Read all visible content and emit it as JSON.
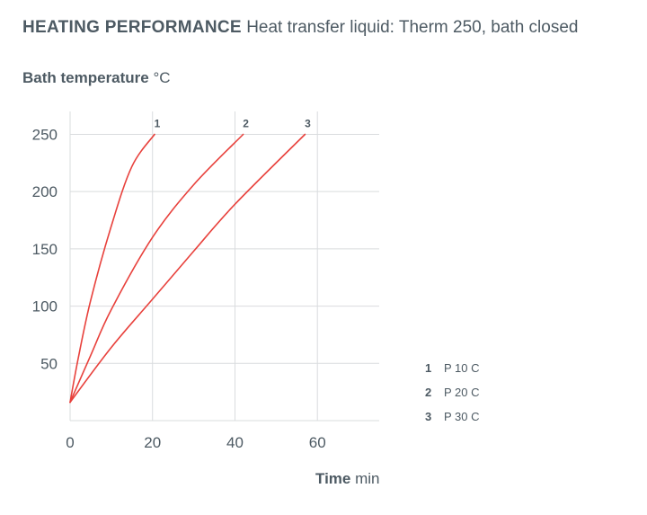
{
  "chart_data": {
    "type": "line",
    "title_bold": "HEATING PERFORMANCE",
    "subtitle": "Heat transfer liquid: Therm 250, bath closed",
    "ylabel_bold": "Bath temperature",
    "ylabel_unit": "°C",
    "xlabel_bold": "Time",
    "xlabel_unit": "min",
    "xlim": [
      0,
      75
    ],
    "ylim": [
      0,
      270
    ],
    "x_ticks": [
      0,
      20,
      40,
      60
    ],
    "y_ticks": [
      50,
      100,
      150,
      200,
      250
    ],
    "grid": true,
    "line_color": "#e8413c",
    "series": [
      {
        "name": "1",
        "legend_label": "P 10 C",
        "points": [
          [
            0,
            16
          ],
          [
            2,
            55
          ],
          [
            5,
            105
          ],
          [
            10,
            170
          ],
          [
            15,
            222
          ],
          [
            20.5,
            250
          ]
        ]
      },
      {
        "name": "2",
        "legend_label": "P 20 C",
        "points": [
          [
            0,
            16
          ],
          [
            5,
            57
          ],
          [
            10,
            97
          ],
          [
            20,
            160
          ],
          [
            30,
            206
          ],
          [
            42,
            250
          ]
        ]
      },
      {
        "name": "3",
        "legend_label": "P 30 C",
        "points": [
          [
            0,
            16
          ],
          [
            10,
            64
          ],
          [
            20,
            106
          ],
          [
            30,
            148
          ],
          [
            40,
            189
          ],
          [
            57,
            250
          ]
        ]
      }
    ],
    "legend_position": "right"
  }
}
